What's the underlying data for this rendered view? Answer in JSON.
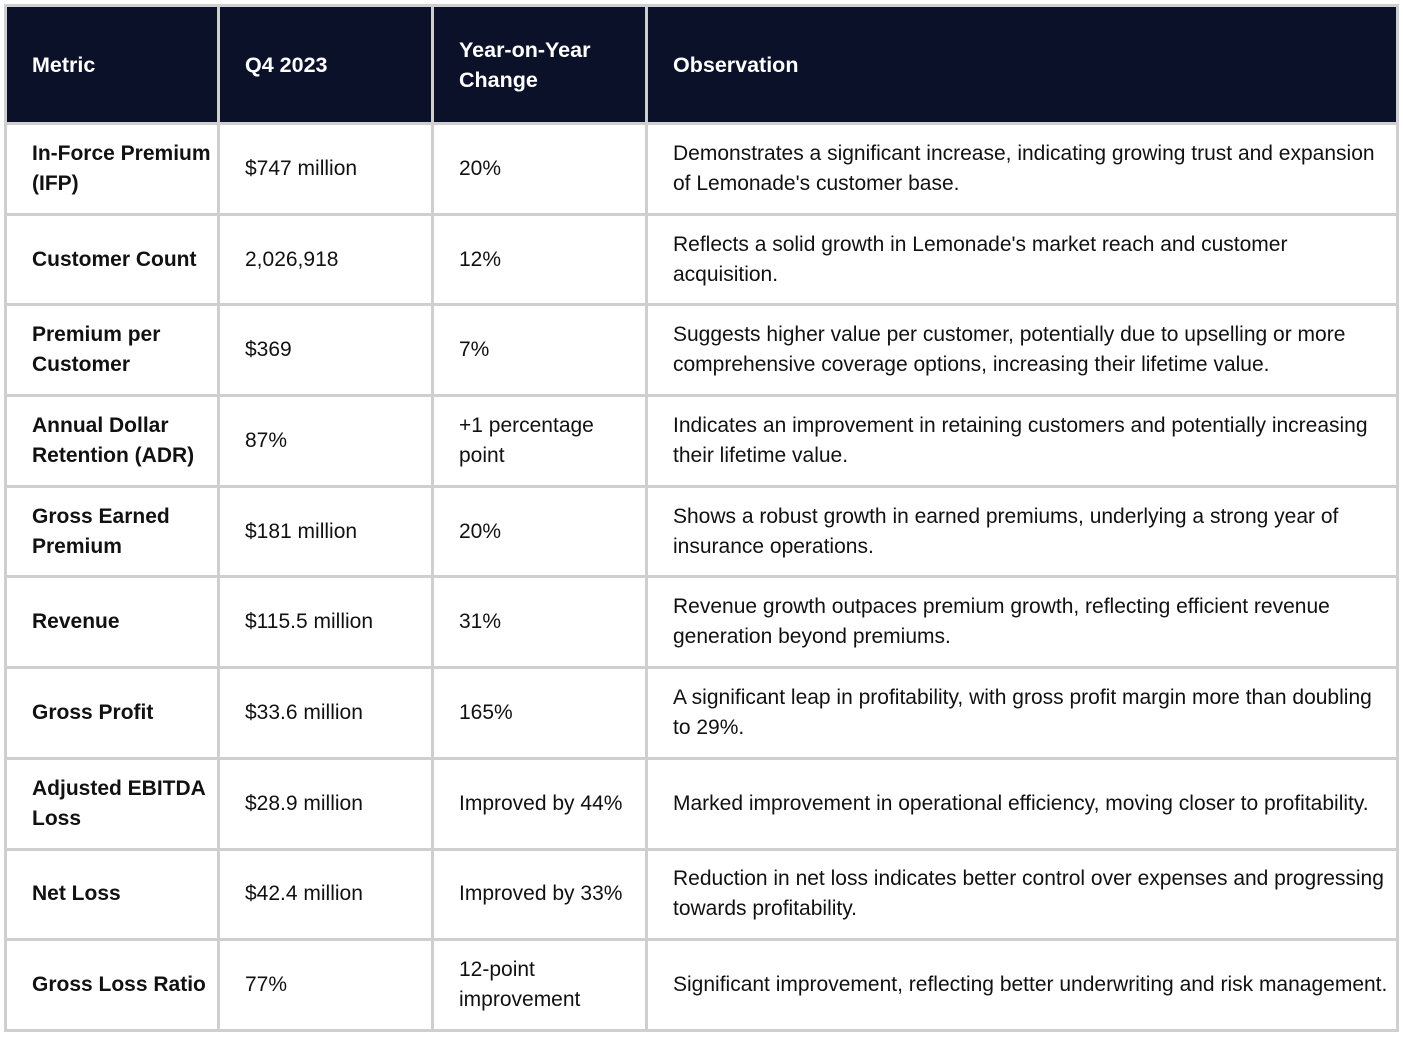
{
  "headers": {
    "metric": "Metric",
    "q4": "Q4 2023",
    "yoy": "Year-on-Year Change",
    "observation": "Observation"
  },
  "rows": [
    {
      "metric": "In-Force Premium (IFP)",
      "q4": "$747 million",
      "yoy": "20%",
      "observation": "Demonstrates a significant increase, indicating growing trust and expansion of Lemonade's customer base."
    },
    {
      "metric": "Customer Count",
      "q4": "2,026,918",
      "yoy": "12%",
      "observation": "Reflects a solid growth in Lemonade's market reach and customer acquisition."
    },
    {
      "metric": "Premium per Customer",
      "q4": "$369",
      "yoy": "7%",
      "observation": "Suggests higher value per customer, potentially due to upselling or more comprehensive coverage options, increasing their lifetime value."
    },
    {
      "metric": "Annual Dollar Retention (ADR)",
      "q4": "87%",
      "yoy": "+1 percentage point",
      "observation": "Indicates an improvement in retaining customers and potentially increasing their lifetime value."
    },
    {
      "metric": "Gross Earned Premium",
      "q4": "$181 million",
      "yoy": "20%",
      "observation": "Shows a robust growth in earned premiums, underlying a strong year of insurance operations."
    },
    {
      "metric": "Revenue",
      "q4": "$115.5 million",
      "yoy": "31%",
      "observation": "Revenue growth outpaces premium growth, reflecting efficient revenue generation beyond premiums."
    },
    {
      "metric": "Gross Profit",
      "q4": "$33.6 million",
      "yoy": "165%",
      "observation": "A significant leap in profitability, with gross profit margin more than doubling to 29%."
    },
    {
      "metric": "Adjusted EBITDA Loss",
      "q4": "$28.9 million",
      "yoy": "Improved by 44%",
      "observation": "Marked improvement in operational efficiency, moving closer to profitability."
    },
    {
      "metric": "Net Loss",
      "q4": "$42.4 million",
      "yoy": "Improved by 33%",
      "observation": "Reduction in net loss indicates better control over expenses and progressing towards profitability."
    },
    {
      "metric": "Gross Loss Ratio",
      "q4": "77%",
      "yoy": "12-point improvement",
      "observation": "Significant improvement, reflecting better underwriting and risk management."
    }
  ],
  "colors": {
    "header_bg": "#0b1129",
    "header_text": "#ffffff",
    "border": "#cfcfcf",
    "body_text": "#111111"
  }
}
